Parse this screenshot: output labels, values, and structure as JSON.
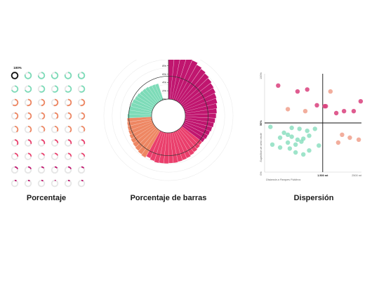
{
  "captions": {
    "percentage": "Porcentaje",
    "bar_percentage": "Porcentaje de barras",
    "scatter": "Dispersión"
  },
  "colors": {
    "teal": "#7ddbb8",
    "orange": "#ee8763",
    "red": "#ea3f6c",
    "magenta": "#c0166f",
    "salmon": "#f0a08c",
    "pink": "#d9407d",
    "track": "#e6e6e6",
    "black": "#111111"
  },
  "chart_data": [
    {
      "type": "percentage-rings",
      "top_label": "100%",
      "rows": [
        [
          100,
          80,
          75,
          80,
          80,
          85
        ],
        [
          70,
          70,
          60,
          60,
          65,
          60
        ],
        [
          60,
          55,
          50,
          55,
          55,
          55
        ],
        [
          45,
          50,
          45,
          40,
          45,
          50
        ],
        [
          40,
          40,
          35,
          35,
          40,
          35
        ],
        [
          35,
          30,
          30,
          25,
          30,
          30
        ],
        [
          25,
          25,
          20,
          20,
          25,
          25
        ],
        [
          20,
          20,
          15,
          15,
          20,
          15
        ],
        [
          10,
          10,
          10,
          5,
          10,
          10
        ]
      ]
    },
    {
      "type": "radial-bar",
      "tick_labels": [
        "12%",
        "10%",
        "8%",
        "6%",
        "4%",
        "2%",
        "0%"
      ],
      "ticks": [
        12,
        10,
        8,
        6,
        4,
        2,
        0
      ],
      "max": 12,
      "bars": [
        {
          "color": "magenta",
          "values": [
            12,
            11.5,
            11.2,
            10.9,
            10.5,
            10,
            9.7,
            9.4,
            9.1,
            8.8,
            8.6,
            8.3,
            8.1,
            7.8,
            7.6,
            7.4,
            7.2,
            7,
            6.8,
            6.6,
            6.5,
            6.3
          ]
        },
        {
          "color": "red",
          "values": [
            6.2,
            6.4,
            6.6,
            6.8,
            7,
            7.1,
            7.2,
            7.3,
            7.3,
            7.4,
            7.4,
            7.5,
            7.3,
            7
          ]
        },
        {
          "color": "orange",
          "values": [
            7.4,
            7.2,
            7,
            6.8,
            6.6,
            6.4,
            6.2,
            6.1,
            6,
            5.9
          ]
        },
        {
          "color": "teal",
          "values": [
            5.8,
            5.6,
            5.5,
            5.3,
            5.2,
            5,
            4.9,
            4.7,
            4.6,
            4.5,
            4.3,
            4.2,
            4.1
          ]
        }
      ]
    },
    {
      "type": "scatter",
      "y_top_label": "100%",
      "y_mid_label": "50%",
      "y_bottom_label": "0%",
      "x_mid_label": "1.500 mt",
      "x_right_label": "2500 mt",
      "xlabel": "Distancia a Parques Públicos",
      "ylabel": "Superficie de área verde",
      "xlim": [
        0,
        2500
      ],
      "ylim": [
        0,
        100
      ],
      "points": [
        {
          "x": 350,
          "y": 88,
          "c": "pink"
        },
        {
          "x": 850,
          "y": 82,
          "c": "pink"
        },
        {
          "x": 1100,
          "y": 84,
          "c": "pink"
        },
        {
          "x": 1350,
          "y": 68,
          "c": "pink"
        },
        {
          "x": 1550,
          "y": 67,
          "c": "pink"
        },
        {
          "x": 1580,
          "y": 67,
          "c": "pink"
        },
        {
          "x": 1850,
          "y": 60,
          "c": "pink"
        },
        {
          "x": 2050,
          "y": 62,
          "c": "pink"
        },
        {
          "x": 2480,
          "y": 72,
          "c": "pink"
        },
        {
          "x": 2300,
          "y": 62,
          "c": "pink"
        },
        {
          "x": 1700,
          "y": 82,
          "c": "salmon"
        },
        {
          "x": 600,
          "y": 64,
          "c": "salmon"
        },
        {
          "x": 1050,
          "y": 62,
          "c": "salmon"
        },
        {
          "x": 2000,
          "y": 38,
          "c": "salmon"
        },
        {
          "x": 2200,
          "y": 35,
          "c": "salmon"
        },
        {
          "x": 1900,
          "y": 30,
          "c": "salmon"
        },
        {
          "x": 2430,
          "y": 33,
          "c": "salmon"
        },
        {
          "x": 150,
          "y": 46,
          "c": "teal"
        },
        {
          "x": 700,
          "y": 45,
          "c": "teal"
        },
        {
          "x": 900,
          "y": 44,
          "c": "teal"
        },
        {
          "x": 1300,
          "y": 44,
          "c": "teal"
        },
        {
          "x": 1100,
          "y": 42,
          "c": "teal"
        },
        {
          "x": 500,
          "y": 40,
          "c": "teal"
        },
        {
          "x": 600,
          "y": 38,
          "c": "teal"
        },
        {
          "x": 1150,
          "y": 37,
          "c": "teal"
        },
        {
          "x": 400,
          "y": 35,
          "c": "teal"
        },
        {
          "x": 700,
          "y": 36,
          "c": "teal"
        },
        {
          "x": 850,
          "y": 33,
          "c": "teal"
        },
        {
          "x": 950,
          "y": 31,
          "c": "teal"
        },
        {
          "x": 1000,
          "y": 34,
          "c": "teal"
        },
        {
          "x": 600,
          "y": 30,
          "c": "teal"
        },
        {
          "x": 800,
          "y": 28,
          "c": "teal"
        },
        {
          "x": 200,
          "y": 28,
          "c": "teal"
        },
        {
          "x": 400,
          "y": 25,
          "c": "teal"
        },
        {
          "x": 650,
          "y": 24,
          "c": "teal"
        },
        {
          "x": 1150,
          "y": 22,
          "c": "teal"
        },
        {
          "x": 1400,
          "y": 27,
          "c": "teal"
        },
        {
          "x": 800,
          "y": 20,
          "c": "teal"
        },
        {
          "x": 1000,
          "y": 18,
          "c": "teal"
        }
      ]
    }
  ]
}
